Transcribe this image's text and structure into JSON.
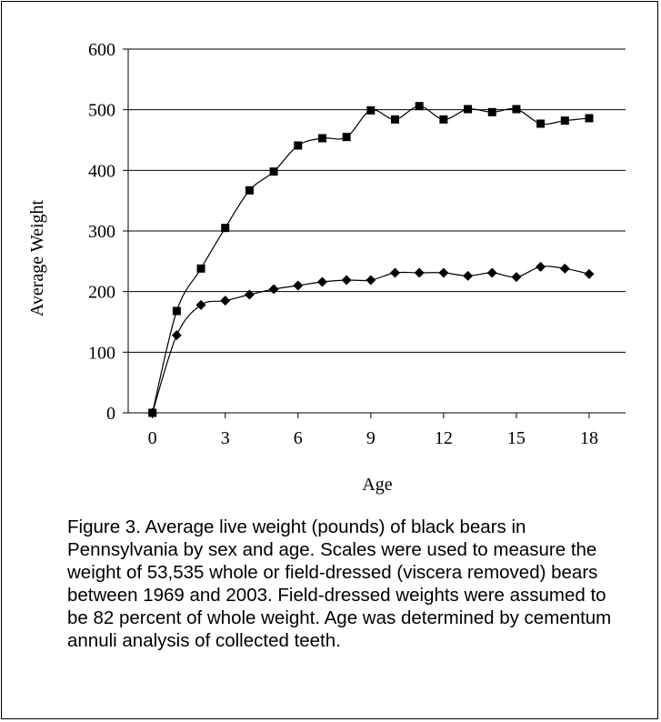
{
  "chart_data": {
    "type": "line",
    "xlabel": "Age",
    "ylabel": "Average Weight",
    "xlim": [
      -1,
      19.5
    ],
    "ylim": [
      0,
      600
    ],
    "xticks": [
      0,
      3,
      6,
      9,
      12,
      15,
      18
    ],
    "yticks": [
      0,
      100,
      200,
      300,
      400,
      500,
      600
    ],
    "grid": "horizontal",
    "legend": "none",
    "series": [
      {
        "marker": "square",
        "x": [
          0,
          1,
          2,
          3,
          4,
          5,
          6,
          7,
          8,
          9,
          10,
          11,
          12,
          13,
          14,
          15,
          16,
          17,
          18
        ],
        "values": [
          0,
          168,
          238,
          305,
          367,
          398,
          441,
          453,
          455,
          499,
          484,
          506,
          484,
          501,
          496,
          501,
          477,
          482,
          486
        ]
      },
      {
        "marker": "diamond",
        "x": [
          0,
          1,
          2,
          3,
          4,
          5,
          6,
          7,
          8,
          9,
          10,
          11,
          12,
          13,
          14,
          15,
          16,
          17,
          18
        ],
        "values": [
          0,
          128,
          178,
          185,
          195,
          204,
          210,
          216,
          219,
          219,
          231,
          231,
          231,
          226,
          231,
          224,
          241,
          238,
          229
        ]
      }
    ]
  },
  "caption": "Figure 3.  Average live weight (pounds) of black bears in Pennsylvania by sex and age.  Scales were used to measure the weight of 53,535 whole or field-dressed (viscera removed) bears between 1969 and 2003.  Field-dressed weights were assumed to be 82 percent of whole weight.  Age was determined by cementum annuli analysis of collected teeth."
}
